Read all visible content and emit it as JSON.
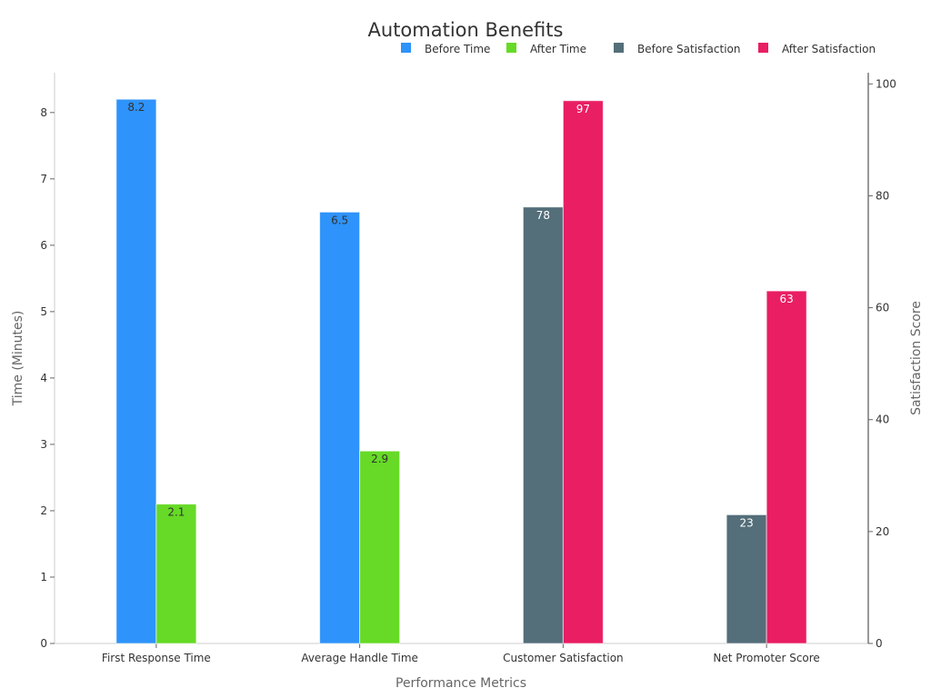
{
  "chart_data": {
    "type": "bar",
    "title": "Automation Benefits",
    "xlabel": "Performance Metrics",
    "ylabel": "Time (Minutes)",
    "y2label": "Satisfaction Score",
    "categories": [
      "First Response Time",
      "Average Handle Time",
      "Customer Satisfaction",
      "Net Promoter Score"
    ],
    "ylim": [
      0,
      8.6
    ],
    "y2lim": [
      0,
      102
    ],
    "yticks": [
      0,
      1,
      2,
      3,
      4,
      5,
      6,
      7,
      8
    ],
    "y2ticks": [
      0,
      20,
      40,
      60,
      80,
      100
    ],
    "legend_position": "top-right",
    "grid": false,
    "series": [
      {
        "name": "Before Time",
        "axis": "left",
        "color": "#2E93FA",
        "label_color": "#333333",
        "values": [
          8.2,
          6.5,
          null,
          null
        ]
      },
      {
        "name": "After Time",
        "axis": "left",
        "color": "#66DA26",
        "label_color": "#333333",
        "values": [
          2.1,
          2.9,
          null,
          null
        ]
      },
      {
        "name": "Before Satisfaction",
        "axis": "right",
        "color": "#546E7A",
        "label_color": "#ffffff",
        "values": [
          null,
          null,
          78,
          23
        ]
      },
      {
        "name": "After Satisfaction",
        "axis": "right",
        "color": "#E91E63",
        "label_color": "#ffffff",
        "values": [
          null,
          null,
          97,
          63
        ]
      }
    ]
  }
}
